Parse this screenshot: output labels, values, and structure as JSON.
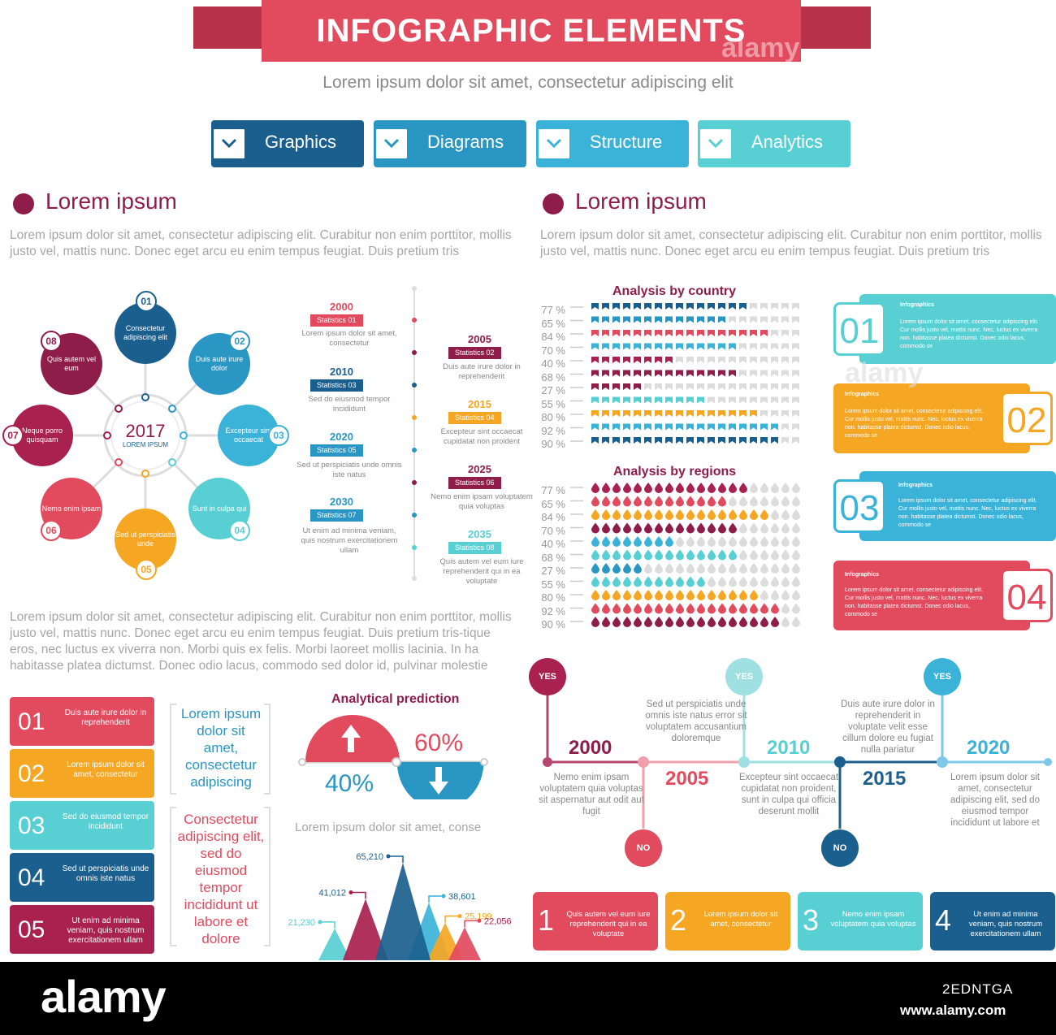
{
  "header": {
    "title": "INFOGRAPHIC ELEMENTS",
    "subtitle": "Lorem ipsum dolor sit amet, consectetur adipiscing elit"
  },
  "tabs": [
    {
      "label": "Graphics",
      "color": "#1b5f8e"
    },
    {
      "label": "Diagrams",
      "color": "#2a96c4"
    },
    {
      "label": "Structure",
      "color": "#3bb3d9"
    },
    {
      "label": "Analytics",
      "color": "#58cfd3"
    }
  ],
  "left_section": {
    "title": "Lorem ipsum",
    "text": "Lorem ipsum dolor sit amet, consectetur adipiscing elit. Curabitur non enim porttitor, mollis justo vel, mattis nunc. Donec eget arcu eu enim tempus feugiat. Duis pretium tris"
  },
  "right_section": {
    "title": "Lorem ipsum",
    "text": "Lorem ipsum dolor sit amet, consectetur adipiscing elit. Curabitur non enim porttitor, mollis justo vel, mattis nunc. Donec eget arcu eu enim tempus feugiat. Duis pretium tris"
  },
  "wheel": {
    "center_year": "2017",
    "center_label": "LOREM IPSUM",
    "nodes": [
      {
        "num": "01",
        "text": "Consectetur adipiscing elit",
        "color": "#1b5f8e"
      },
      {
        "num": "02",
        "text": "Duis aute irure dolor",
        "color": "#2a96c4"
      },
      {
        "num": "03",
        "text": "Excepteur sint occaecat",
        "color": "#3bb3d9"
      },
      {
        "num": "04",
        "text": "Sunt in culpa qui",
        "color": "#58cfd3"
      },
      {
        "num": "05",
        "text": "Sed ut perspiciatis unde",
        "color": "#f5a623"
      },
      {
        "num": "06",
        "text": "Nemo enim ipsam",
        "color": "#e24a5e"
      },
      {
        "num": "07",
        "text": "Neque porro quisquam",
        "color": "#a8214f"
      },
      {
        "num": "08",
        "text": "Quis autem vel eum",
        "color": "#8f1d4a"
      }
    ]
  },
  "timeline": [
    {
      "year": "2000",
      "stat": "Statistics 01",
      "text": "Lorem ipsum dolor sit amet, consectetur",
      "color": "#e24a5e",
      "side": "left"
    },
    {
      "year": "2005",
      "stat": "Statistics 02",
      "text": "Duis aute irure dolor in reprehenderit",
      "color": "#8f1d4a",
      "side": "right"
    },
    {
      "year": "2010",
      "stat": "Statistics 03",
      "text": "Sed do eiusmod tempor incididunt",
      "color": "#1b5f8e",
      "side": "left"
    },
    {
      "year": "2015",
      "stat": "Statistics 04",
      "text": "Excepteur sint occaecat cupidatat non proident",
      "color": "#f5a623",
      "side": "right"
    },
    {
      "year": "2020",
      "stat": "Statistics 05",
      "text": "Sed ut perspiciatis unde omnis iste natus",
      "color": "#2a96c4",
      "side": "left"
    },
    {
      "year": "2025",
      "stat": "Statistics 06",
      "text": "Nemo enim ipsam voluptatem quia voluptas",
      "color": "#8f1d4a",
      "side": "right"
    },
    {
      "year": "2030",
      "stat": "Statistics 07",
      "text": "Ut enim ad minima veniam, quis nostrum exercitationem ullam",
      "color": "#2a96c4",
      "side": "left"
    },
    {
      "year": "2035",
      "stat": "Statistics 08",
      "text": "Quis autem vel eum iure reprehenderit qui in ea voluptate",
      "color": "#58cfd3",
      "side": "right"
    }
  ],
  "chart_data": [
    {
      "type": "bar",
      "title": "Analysis by country",
      "categories": [
        "77 %",
        "65 %",
        "84 %",
        "70 %",
        "40 %",
        "68 %",
        "27 %",
        "55 %",
        "80 %",
        "92 %",
        "90 %"
      ],
      "values": [
        77,
        65,
        84,
        70,
        40,
        68,
        27,
        55,
        80,
        92,
        90
      ],
      "colors": [
        "#1b5f8e",
        "#2a96c4",
        "#e24a5e",
        "#3bb3d9",
        "#a8214f",
        "#8f1d4a",
        "#8f1d4a",
        "#58cfd3",
        "#f5a623",
        "#3bb3d9",
        "#1b5f8e"
      ]
    },
    {
      "type": "bar",
      "title": "Analysis by regions",
      "categories": [
        "77 %",
        "65 %",
        "84 %",
        "70 %",
        "40 %",
        "68 %",
        "27 %",
        "55 %",
        "80 %",
        "92 %",
        "90 %"
      ],
      "values": [
        77,
        65,
        84,
        70,
        40,
        68,
        27,
        55,
        80,
        92,
        90
      ],
      "colors": [
        "#a8214f",
        "#e24a5e",
        "#f5a623",
        "#8f1d4a",
        "#3bb3d9",
        "#58cfd3",
        "#2a96c4",
        "#58cfd3",
        "#f5a623",
        "#e24a5e",
        "#8f1d4a"
      ]
    },
    {
      "type": "pie",
      "title": "Analytical prediction",
      "values": [
        60,
        40
      ],
      "labels": [
        "60%",
        "40%"
      ]
    },
    {
      "type": "area",
      "title": "Lorem ipsum dolor sit amet, conse",
      "values": [
        21230,
        41012,
        65210,
        38601,
        25199,
        22056
      ],
      "labels": [
        "21,230",
        "41,012",
        "65,210",
        "38,601",
        "25,199",
        "22,056"
      ],
      "colors": [
        "#58cfd3",
        "#a8214f",
        "#1b5f8e",
        "#3bb3d9",
        "#f5a623",
        "#e24a5e"
      ]
    }
  ],
  "cards": [
    {
      "num": "01",
      "title": "Infographics",
      "text": "Lorem ipsum dolor sit amet, consectetur adipiscing elit. Cur mollis justo vel, mattis nunc. Nec, luctus ex viverra non. habitasse platea dictumst. Donec odio lacus, commodo se",
      "color": "#58cfd3"
    },
    {
      "num": "02",
      "title": "Infographics",
      "text": "Lorem ipsum dolor sit amet, consectetur adipiscing elit. Cur mollis justo vel, mattis nunc. Nec, luctus ex viverra non. habitasse platea dictumst. Donec odio lacus, commodo se",
      "color": "#f5a623"
    },
    {
      "num": "03",
      "title": "Infographics",
      "text": "Lorem ipsum dolor sit amet, consectetur adipiscing elit. Cur mollis justo vel, mattis nunc. Nec, luctus ex viverra non. habitasse platea dictumst. Donec odio lacus, commodo se",
      "color": "#3bb3d9"
    },
    {
      "num": "04",
      "title": "Infographics",
      "text": "Lorem ipsum dolor sit amet, consectetur adipiscing elit. Cur mollis justo vel, mattis nunc. Nec, luctus ex viverra non. habitasse platea dictumst. Donec odio lacus, commodo se",
      "color": "#e24a5e"
    }
  ],
  "middle_text": "Lorem ipsum dolor sit amet, consectetur adipiscing elit. Curabitur non enim porttitor, mollis justo vel, mattis nunc. Donec eget arcu eu enim tempus feugiat. Duis pretium tris-tique eros, nec luctus ex viverra non. Morbi quis ex felis. Morbi laoreet mollis lacinia. In ha habitasse platea dictumst. Donec odio lacus, commodo sed dolor id, pulvinar molestie",
  "list": [
    {
      "num": "01",
      "text": "Duis aute irure dolor in reprehenderit",
      "color": "#e24a5e"
    },
    {
      "num": "02",
      "text": "Lorem ipsum dolor sit amet, consectetur",
      "color": "#f5a623"
    },
    {
      "num": "03",
      "text": "Sed do eiusmod tempor incididunt",
      "color": "#58cfd3"
    },
    {
      "num": "04",
      "text": "Sed ut perspiciatis unde omnis iste natus",
      "color": "#1b5f8e"
    },
    {
      "num": "05",
      "text": "Ut enim ad minima veniam, quis nostrum exercitationem ullam",
      "color": "#a8214f"
    }
  ],
  "quote_blue": "Lorem ipsum dolor sit amet, consectetur adipiscing",
  "quote_red": "Consectetur adipiscing elit, sed do eiusmod tempor incididunt ut labore et dolore",
  "decision_timeline": {
    "years": [
      "2000",
      "2005",
      "2010",
      "2015",
      "2020"
    ],
    "yes": "YES",
    "no": "NO",
    "texts": [
      "Nemo enim ipsam voluptatem quia voluptas sit aspernatur aut odit aut fugit",
      "Sed ut perspiciatis unde omnis iste natus error sit voluptatem accusantium doloremque",
      "Excepteur sint occaecat cupidatat non proident, sunt in culpa qui officia deserunt mollit",
      "Duis aute irure dolor in reprehenderit in voluptate velit esse cillum dolore eu fugiat nulla pariatur",
      "Lorem ipsum dolor sit amet, consectetur adipiscing elit, sed do eiusmod tempor incididunt ut labore et"
    ]
  },
  "boxes": [
    {
      "num": "1",
      "text": "Quis autem vel eum iure reprehenderit qui in ea voluptate",
      "color": "#e24a5e"
    },
    {
      "num": "2",
      "text": "Lorem ipsum dolor sit amet, consectetur",
      "color": "#f5a623"
    },
    {
      "num": "3",
      "text": "Nemo enim ipsam voluptatem quia voluptas",
      "color": "#58cfd3"
    },
    {
      "num": "4",
      "text": "Ut enim ad minima veniam, quis nostrum exercitationem ullam",
      "color": "#1b5f8e"
    }
  ],
  "footer": {
    "logo": "alamy",
    "image_id": "2EDNTGA",
    "url": "www.alamy.com",
    "watermark": "alamy"
  }
}
